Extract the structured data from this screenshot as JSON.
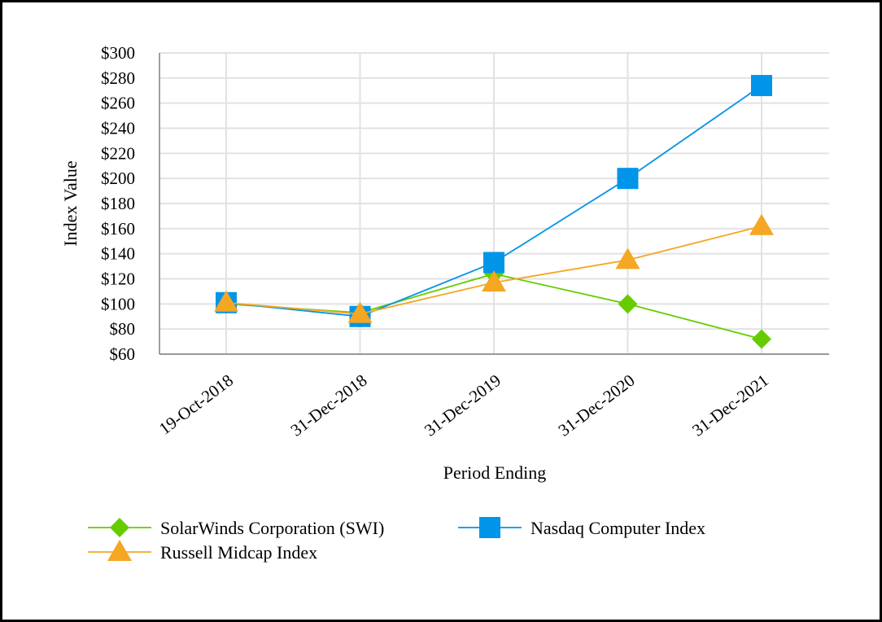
{
  "chart_data": {
    "type": "line",
    "title": "",
    "xlabel": "Period Ending",
    "ylabel": "Index Value",
    "categories": [
      "19-Oct-2018",
      "31-Dec-2018",
      "31-Dec-2019",
      "31-Dec-2020",
      "31-Dec-2021"
    ],
    "ylim": [
      60,
      300
    ],
    "ytick_step": 20,
    "ytick_prefix": "$",
    "grid": true,
    "legend_placement": "bottom",
    "series": [
      {
        "name": "SolarWinds Corporation (SWI)",
        "values": [
          100,
          93,
          124,
          100,
          72
        ],
        "color": "#66cc00",
        "marker": "diamond"
      },
      {
        "name": "Nasdaq Computer Index",
        "values": [
          101,
          90,
          133,
          200,
          274
        ],
        "color": "#0095e8",
        "marker": "square"
      },
      {
        "name": "Russell Midcap Index",
        "values": [
          101,
          92,
          117,
          135,
          162
        ],
        "color": "#f5a623",
        "marker": "triangle"
      }
    ]
  }
}
